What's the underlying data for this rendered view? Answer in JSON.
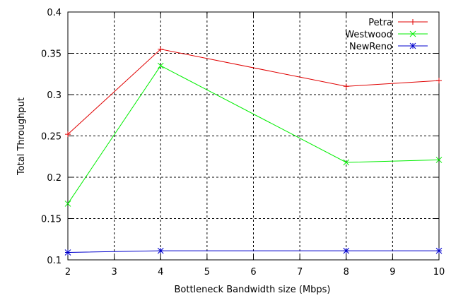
{
  "chart_data": {
    "type": "line",
    "xlabel": "Bottleneck Bandwidth size (Mbps)",
    "ylabel": "Total Throughput",
    "xlim": [
      2,
      10
    ],
    "ylim": [
      0.1,
      0.4
    ],
    "xticks": [
      2,
      3,
      4,
      5,
      6,
      7,
      8,
      9,
      10
    ],
    "yticks": [
      "0.1",
      "0.15",
      "0.2",
      "0.25",
      "0.3",
      "0.35",
      "0.4"
    ],
    "grid": true,
    "legend_position": "top-right",
    "x": [
      2,
      4,
      8,
      10
    ],
    "series": [
      {
        "name": "Petra",
        "color": "#e00000",
        "marker": "plus",
        "values": [
          0.252,
          0.355,
          0.31,
          0.317
        ]
      },
      {
        "name": "Westwood",
        "color": "#00ee00",
        "marker": "cross",
        "values": [
          0.168,
          0.335,
          0.218,
          0.221
        ]
      },
      {
        "name": "NewReno",
        "color": "#0000cc",
        "marker": "star",
        "values": [
          0.109,
          0.111,
          0.111,
          0.111
        ]
      }
    ]
  }
}
